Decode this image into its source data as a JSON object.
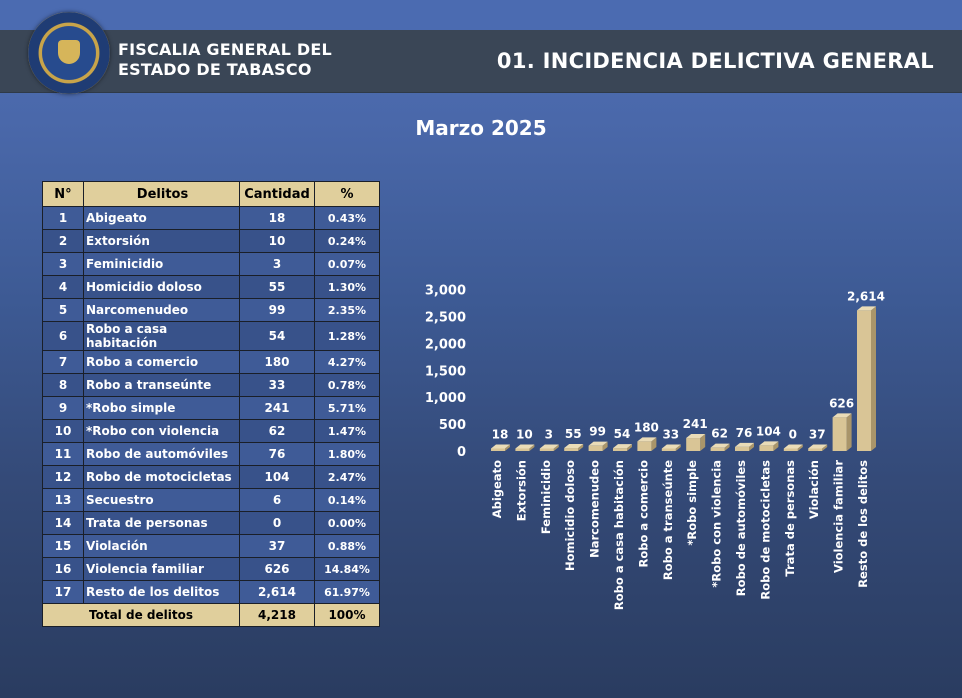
{
  "header": {
    "org_line1": "FISCALIA GENERAL DEL",
    "org_line2": "ESTADO DE TABASCO",
    "title": "01. INCIDENCIA DELICTIVA GENERAL",
    "logo": "fiscalia-seal"
  },
  "subtitle": "Marzo 2025",
  "colors": {
    "header_bg": "#3a4656",
    "table_header": "#e0cf9c",
    "bar": "#d9c596"
  },
  "table": {
    "headers": [
      "N°",
      "Delitos",
      "Cantidad",
      "%"
    ],
    "rows": [
      {
        "n": "1",
        "delito": "Abigeato",
        "cantidad": "18",
        "pct": "0.43%"
      },
      {
        "n": "2",
        "delito": "Extorsión",
        "cantidad": "10",
        "pct": "0.24%"
      },
      {
        "n": "3",
        "delito": "Feminicidio",
        "cantidad": "3",
        "pct": "0.07%"
      },
      {
        "n": "4",
        "delito": "Homicidio doloso",
        "cantidad": "55",
        "pct": "1.30%"
      },
      {
        "n": "5",
        "delito": "Narcomenudeo",
        "cantidad": "99",
        "pct": "2.35%"
      },
      {
        "n": "6",
        "delito": "Robo a casa habitación",
        "cantidad": "54",
        "pct": "1.28%"
      },
      {
        "n": "7",
        "delito": "Robo a comercio",
        "cantidad": "180",
        "pct": "4.27%"
      },
      {
        "n": "8",
        "delito": "Robo a transeúnte",
        "cantidad": "33",
        "pct": "0.78%"
      },
      {
        "n": "9",
        "delito": "*Robo simple",
        "cantidad": "241",
        "pct": "5.71%"
      },
      {
        "n": "10",
        "delito": "*Robo con violencia",
        "cantidad": "62",
        "pct": "1.47%"
      },
      {
        "n": "11",
        "delito": "Robo de automóviles",
        "cantidad": "76",
        "pct": "1.80%"
      },
      {
        "n": "12",
        "delito": "Robo de motocicletas",
        "cantidad": "104",
        "pct": "2.47%"
      },
      {
        "n": "13",
        "delito": "Secuestro",
        "cantidad": "6",
        "pct": "0.14%"
      },
      {
        "n": "14",
        "delito": "Trata de personas",
        "cantidad": "0",
        "pct": "0.00%"
      },
      {
        "n": "15",
        "delito": "Violación",
        "cantidad": "37",
        "pct": "0.88%"
      },
      {
        "n": "16",
        "delito": "Violencia familiar",
        "cantidad": "626",
        "pct": "14.84%"
      },
      {
        "n": "17",
        "delito": "Resto de los delitos",
        "cantidad": "2,614",
        "pct": "61.97%"
      }
    ],
    "total": {
      "label": "Total de delitos",
      "cantidad": "4,218",
      "pct": "100%"
    }
  },
  "chart_data": {
    "type": "bar",
    "categories": [
      "Abigeato",
      "Extorsión",
      "Feminicidio",
      "Homicidio doloso",
      "Narcomenudeo",
      "Robo a casa habitación",
      "Robo a comercio",
      "Robo a transeúnte",
      "*Robo simple",
      "*Robo con violencia",
      "Robo de automóviles",
      "Robo de motocicletas",
      "Trata de personas",
      "Violación",
      "Violencia familiar",
      "Resto de los delitos"
    ],
    "values": [
      18,
      10,
      3,
      55,
      99,
      54,
      180,
      33,
      241,
      62,
      76,
      104,
      0,
      37,
      626,
      2614
    ],
    "value_labels": [
      "18",
      "10",
      "3",
      "55",
      "99",
      "54",
      "180",
      "33",
      "241",
      "62",
      "76",
      "104",
      "0",
      "37",
      "626",
      "2,614"
    ],
    "ylim": [
      0,
      3000
    ],
    "yticks": [
      "0",
      "500",
      "1,000",
      "1,500",
      "2,000",
      "2,500",
      "3,000"
    ],
    "grid": false,
    "bar_color": "#d9c596"
  }
}
